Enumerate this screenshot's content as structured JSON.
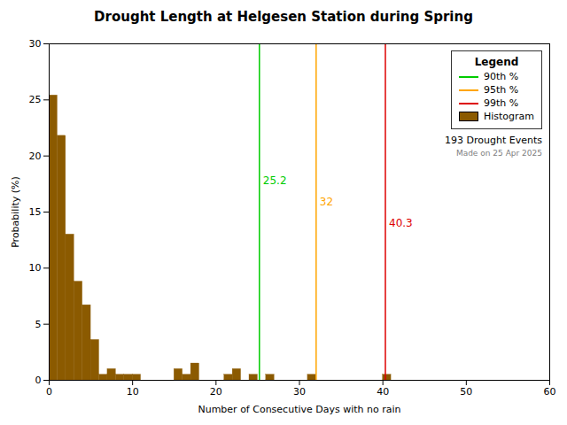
{
  "chart_data": {
    "type": "histogram",
    "title": "Drought Length at Helgesen Station during Spring",
    "xlabel": "Number of Consecutive Days with no rain",
    "ylabel": "Probability (%)",
    "name": "Histogram",
    "color": "#8B5A00",
    "bins": [
      0,
      1,
      2,
      3,
      4,
      5,
      6,
      7,
      8,
      9,
      10,
      11,
      12,
      13,
      14,
      15,
      16,
      17,
      18,
      19,
      20,
      21,
      22,
      23,
      24,
      25,
      26,
      27,
      28,
      29,
      30,
      31,
      32,
      33,
      34,
      35,
      36,
      37,
      38,
      39,
      40,
      41,
      42,
      43,
      44,
      45,
      46,
      47,
      48,
      49,
      50,
      51,
      52,
      53,
      54,
      55,
      56,
      57,
      58,
      59,
      60
    ],
    "values": [
      25.4,
      21.8,
      13.0,
      8.8,
      6.7,
      3.6,
      0.5,
      1.0,
      0.5,
      0.5,
      0.5,
      0.0,
      0.0,
      0.0,
      0.0,
      1.0,
      0.5,
      1.5,
      0.0,
      0.0,
      0.0,
      0.5,
      1.0,
      0.0,
      0.5,
      0.0,
      0.5,
      0.0,
      0.0,
      0.0,
      0.0,
      0.5,
      0.0,
      0.0,
      0.0,
      0.0,
      0.0,
      0.0,
      0.0,
      0.0,
      0.5,
      0.0,
      0.0,
      0.0,
      0.0,
      0.0,
      0.0,
      0.0,
      0.0,
      0.0,
      0.0,
      0.0,
      0.0,
      0.0,
      0.0,
      0.0,
      0.0,
      0.0,
      0.0,
      0.0
    ],
    "lines": [
      {
        "name": "90th %",
        "x": 25.2,
        "color": "#00cc00"
      },
      {
        "name": "95th %",
        "x": 32.0,
        "color": "#ffa500"
      },
      {
        "name": "99th %",
        "x": 40.3,
        "color": "#dd0000"
      }
    ],
    "xlim": [
      0,
      60
    ],
    "ylim": [
      0,
      30
    ],
    "xticks": [
      0,
      10,
      20,
      30,
      40,
      50,
      60
    ],
    "yticks": [
      0,
      5,
      10,
      15,
      20,
      25,
      30
    ],
    "grid": false,
    "legend": "upper right",
    "legend_title": "Legend",
    "annotations": [
      "193 Drought Events",
      "Made on 25 Apr 2025"
    ]
  }
}
